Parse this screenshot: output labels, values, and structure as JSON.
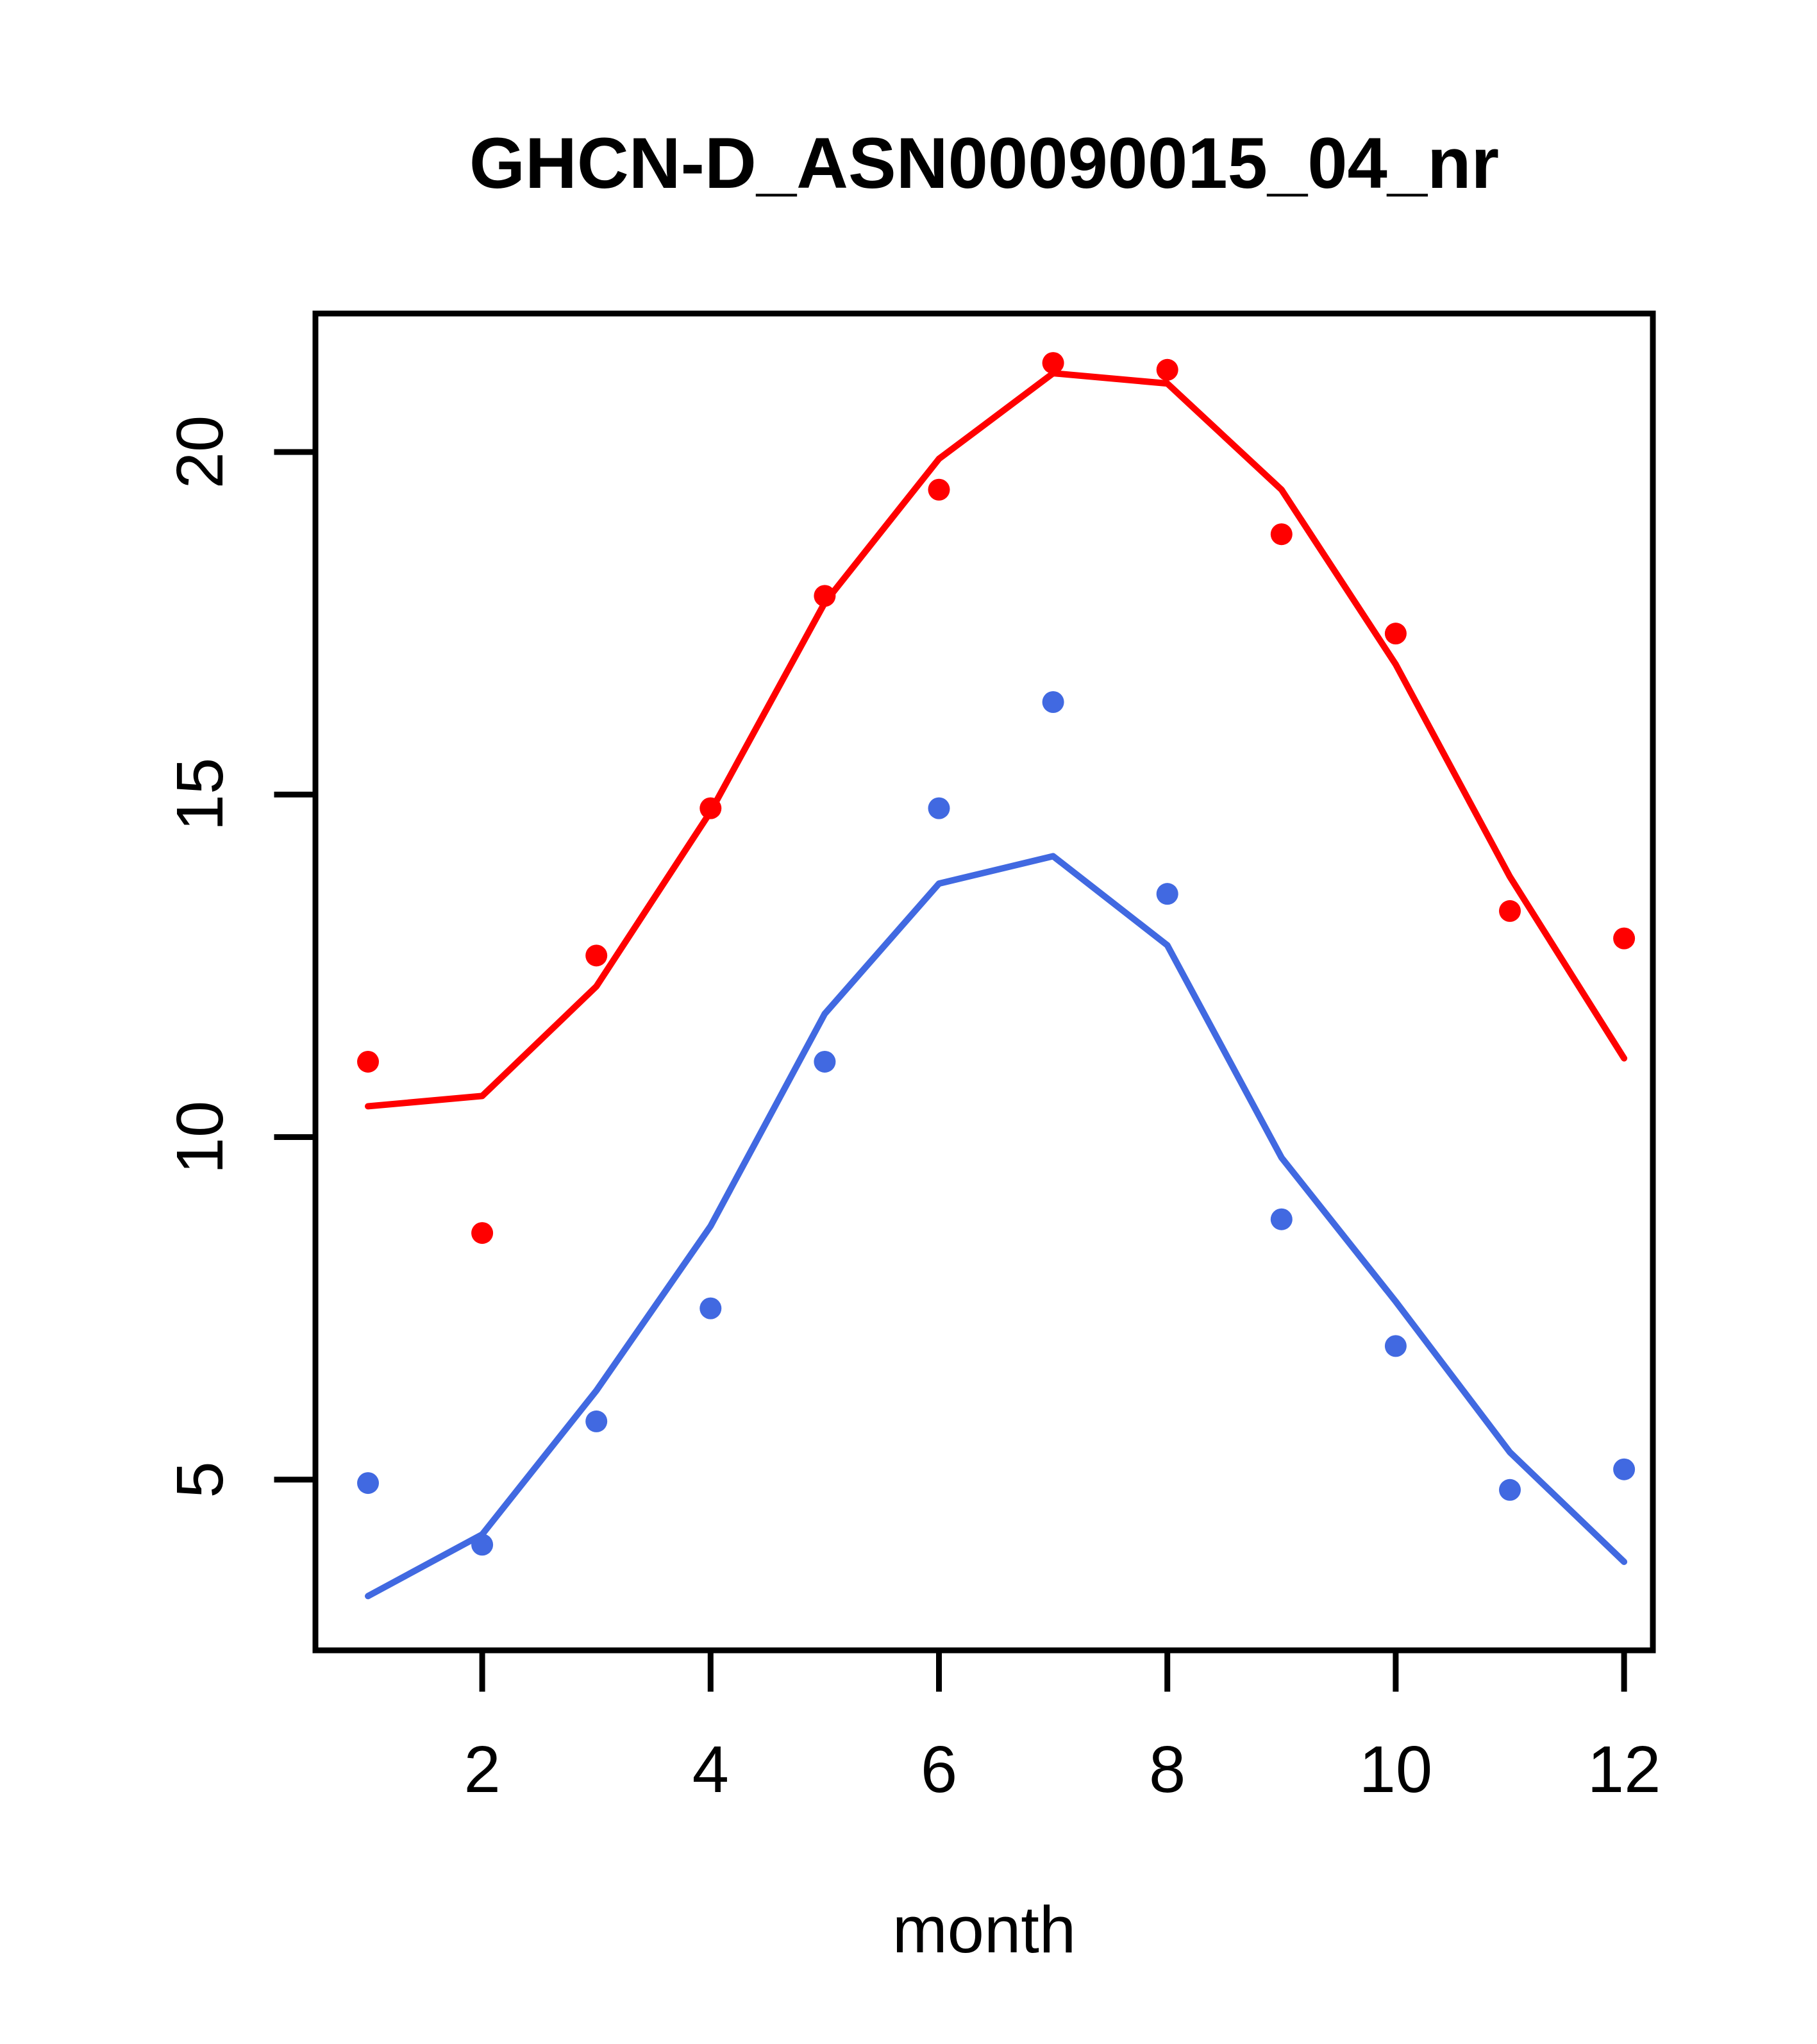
{
  "title": "GHCN-D_ASN00090015_04_nr",
  "x_axis": {
    "label": "month",
    "tick_labels": [
      "2",
      "4",
      "6",
      "8",
      "10",
      "12"
    ]
  },
  "y_axis": {
    "label": "",
    "tick_labels": [
      "5",
      "10",
      "15",
      "20"
    ]
  },
  "colors": {
    "red_series": "#FF0000",
    "blue_series": "#4169E1",
    "frame": "#000000",
    "background": "#FFFFFF"
  },
  "chart_data": {
    "type": "scatter",
    "title": "GHCN-D_ASN00090015_04_nr",
    "xlabel": "month",
    "ylabel": "",
    "x": [
      1,
      2,
      3,
      4,
      5,
      6,
      7,
      8,
      9,
      10,
      11,
      12
    ],
    "xlim": [
      0.55,
      12.25
    ],
    "ylim": [
      2.5,
      22.0
    ],
    "x_ticks": [
      2,
      4,
      6,
      8,
      10,
      12
    ],
    "y_ticks": [
      5,
      10,
      15,
      20
    ],
    "grid": false,
    "legend": "none",
    "series": [
      {
        "name": "red-smooth-line",
        "type": "line",
        "color": "#FF0000",
        "values": [
          10.45,
          10.6,
          12.2,
          14.75,
          17.8,
          19.9,
          21.15,
          21.0,
          19.45,
          16.9,
          13.8,
          11.15
        ]
      },
      {
        "name": "blue-smooth-line",
        "type": "line",
        "color": "#4169E1",
        "values": [
          3.3,
          4.2,
          6.3,
          8.7,
          11.8,
          13.7,
          14.1,
          12.8,
          9.7,
          7.6,
          5.4,
          3.8
        ]
      },
      {
        "name": "red-points",
        "type": "points",
        "color": "#FF0000",
        "values": [
          11.1,
          8.6,
          12.65,
          14.8,
          17.9,
          19.45,
          21.3,
          21.2,
          18.8,
          17.35,
          13.3,
          12.9
        ]
      },
      {
        "name": "blue-points",
        "type": "points",
        "color": "#4169E1",
        "values": [
          4.95,
          4.05,
          5.85,
          7.5,
          11.1,
          14.8,
          16.35,
          13.55,
          8.8,
          6.95,
          4.85,
          5.15
        ]
      }
    ]
  }
}
